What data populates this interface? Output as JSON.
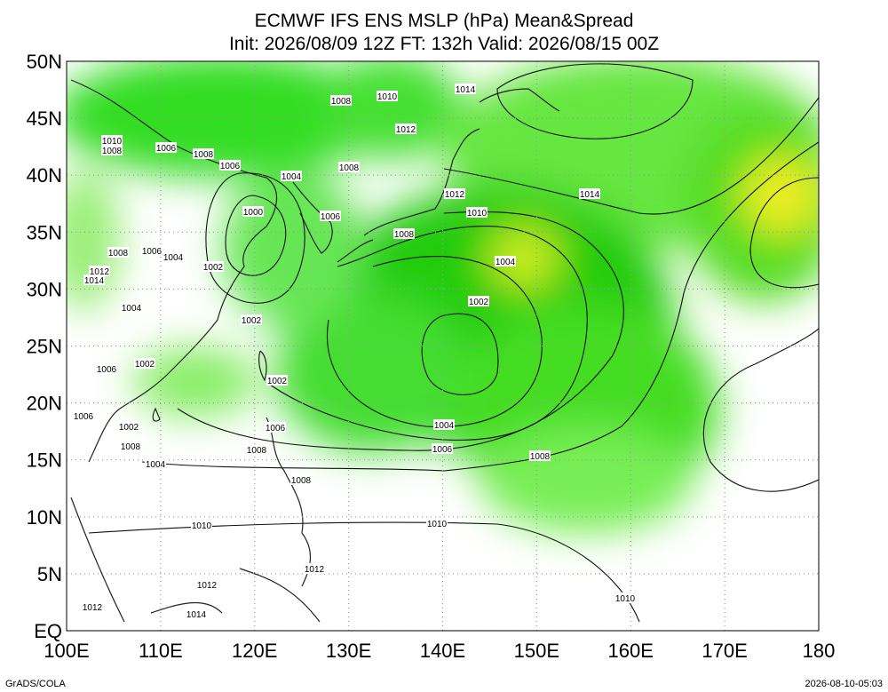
{
  "title": {
    "line1": "ECMWF IFS ENS MSLP (hPa) Mean&Spread",
    "line2": "Init: 2026/08/09 12Z  FT: 132h  Valid: 2026/08/15 00Z"
  },
  "map": {
    "lon_ticks": [
      {
        "value": 100,
        "label": "100E"
      },
      {
        "value": 110,
        "label": "110E"
      },
      {
        "value": 120,
        "label": "120E"
      },
      {
        "value": 130,
        "label": "130E"
      },
      {
        "value": 140,
        "label": "140E"
      },
      {
        "value": 150,
        "label": "150E"
      },
      {
        "value": 160,
        "label": "160E"
      },
      {
        "value": 170,
        "label": "170E"
      },
      {
        "value": 180,
        "label": "180"
      }
    ],
    "lat_ticks": [
      {
        "value": 0,
        "label": "EQ"
      },
      {
        "value": 5,
        "label": "5N"
      },
      {
        "value": 10,
        "label": "10N"
      },
      {
        "value": 15,
        "label": "15N"
      },
      {
        "value": 20,
        "label": "20N"
      },
      {
        "value": 25,
        "label": "25N"
      },
      {
        "value": 30,
        "label": "30N"
      },
      {
        "value": 35,
        "label": "35N"
      },
      {
        "value": 40,
        "label": "40N"
      },
      {
        "value": 45,
        "label": "45N"
      },
      {
        "value": 50,
        "label": "50N"
      }
    ],
    "contour_labels": [
      1008,
      1010,
      1014,
      1012,
      1010,
      1008,
      1006,
      1008,
      1006,
      1004,
      1008,
      1012,
      1014,
      1010,
      1000,
      1006,
      1008,
      1008,
      1006,
      1004,
      1002,
      1004,
      1012,
      1014,
      1004,
      1002,
      1002,
      1006,
      1002,
      1002,
      1006,
      1002,
      1006,
      1004,
      1008,
      1008,
      1006,
      1008,
      1004,
      1008,
      1010,
      1010,
      1012,
      1012,
      1010,
      1012,
      1014
    ]
  },
  "footer": {
    "left": "GrADS/COLA",
    "right": "2026-08-10-05:03"
  }
}
